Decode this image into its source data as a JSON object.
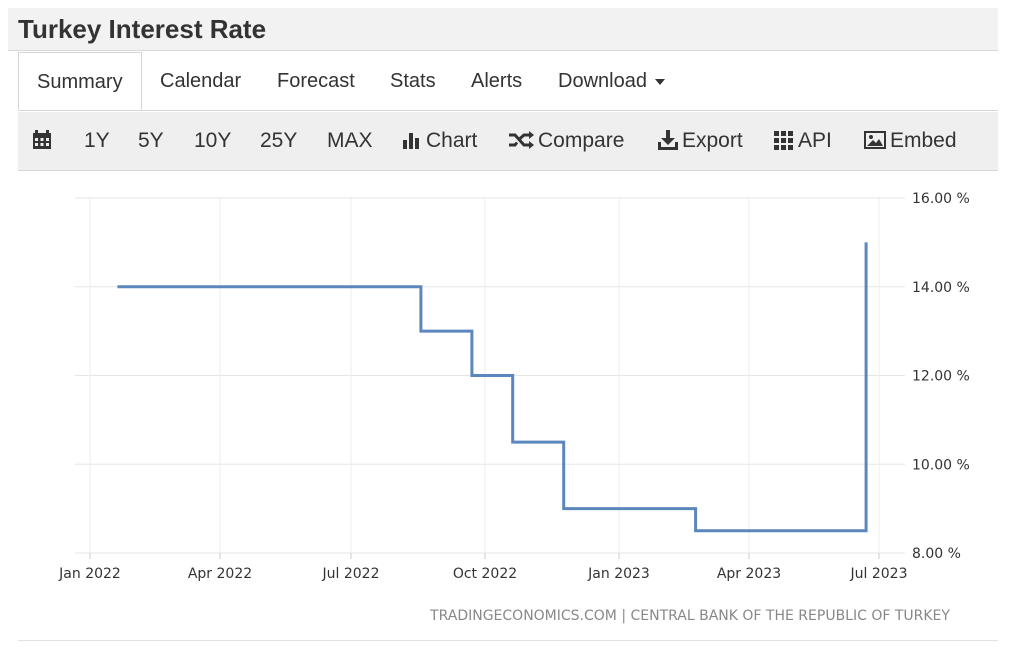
{
  "page": {
    "title": "Turkey Interest Rate"
  },
  "tabs": [
    {
      "label": "Summary",
      "active": true
    },
    {
      "label": "Calendar"
    },
    {
      "label": "Forecast"
    },
    {
      "label": "Stats"
    },
    {
      "label": "Alerts"
    },
    {
      "label": "Download"
    }
  ],
  "toolbar": {
    "calendar_icon": "calendar-icon",
    "range_1y": "1Y",
    "range_5y": "5Y",
    "range_10y": "10Y",
    "range_25y": "25Y",
    "range_max": "MAX",
    "chart_label": "Chart",
    "chart_icon": "bar-chart-icon",
    "compare_label": "Compare",
    "compare_icon": "shuffle-icon",
    "export_label": "Export",
    "export_icon": "download-icon",
    "api_label": "API",
    "api_icon": "grid-icon",
    "embed_label": "Embed",
    "embed_icon": "image-icon"
  },
  "chart_data": {
    "type": "line",
    "step": true,
    "title": "",
    "xlabel": "",
    "ylabel": "",
    "y_range": [
      8,
      16
    ],
    "y_ticks": [
      "8.00 %",
      "10.00 %",
      "12.00 %",
      "14.00 %",
      "16.00 %"
    ],
    "x_ticks": [
      "Jan 2022",
      "Apr 2022",
      "Jul 2022",
      "Oct 2022",
      "Jan 2023",
      "Apr 2023",
      "Jul 2023"
    ],
    "grid": true,
    "line_color": "#5b87bc",
    "x": [
      "2022-01-20",
      "2022-08-18",
      "2022-09-22",
      "2022-10-20",
      "2022-11-24",
      "2023-02-23",
      "2023-06-22"
    ],
    "y": [
      14,
      13,
      12,
      10.5,
      9,
      8.5,
      15
    ],
    "source": "TRADINGECONOMICS.COM | CENTRAL BANK OF THE REPUBLIC OF TURKEY"
  }
}
